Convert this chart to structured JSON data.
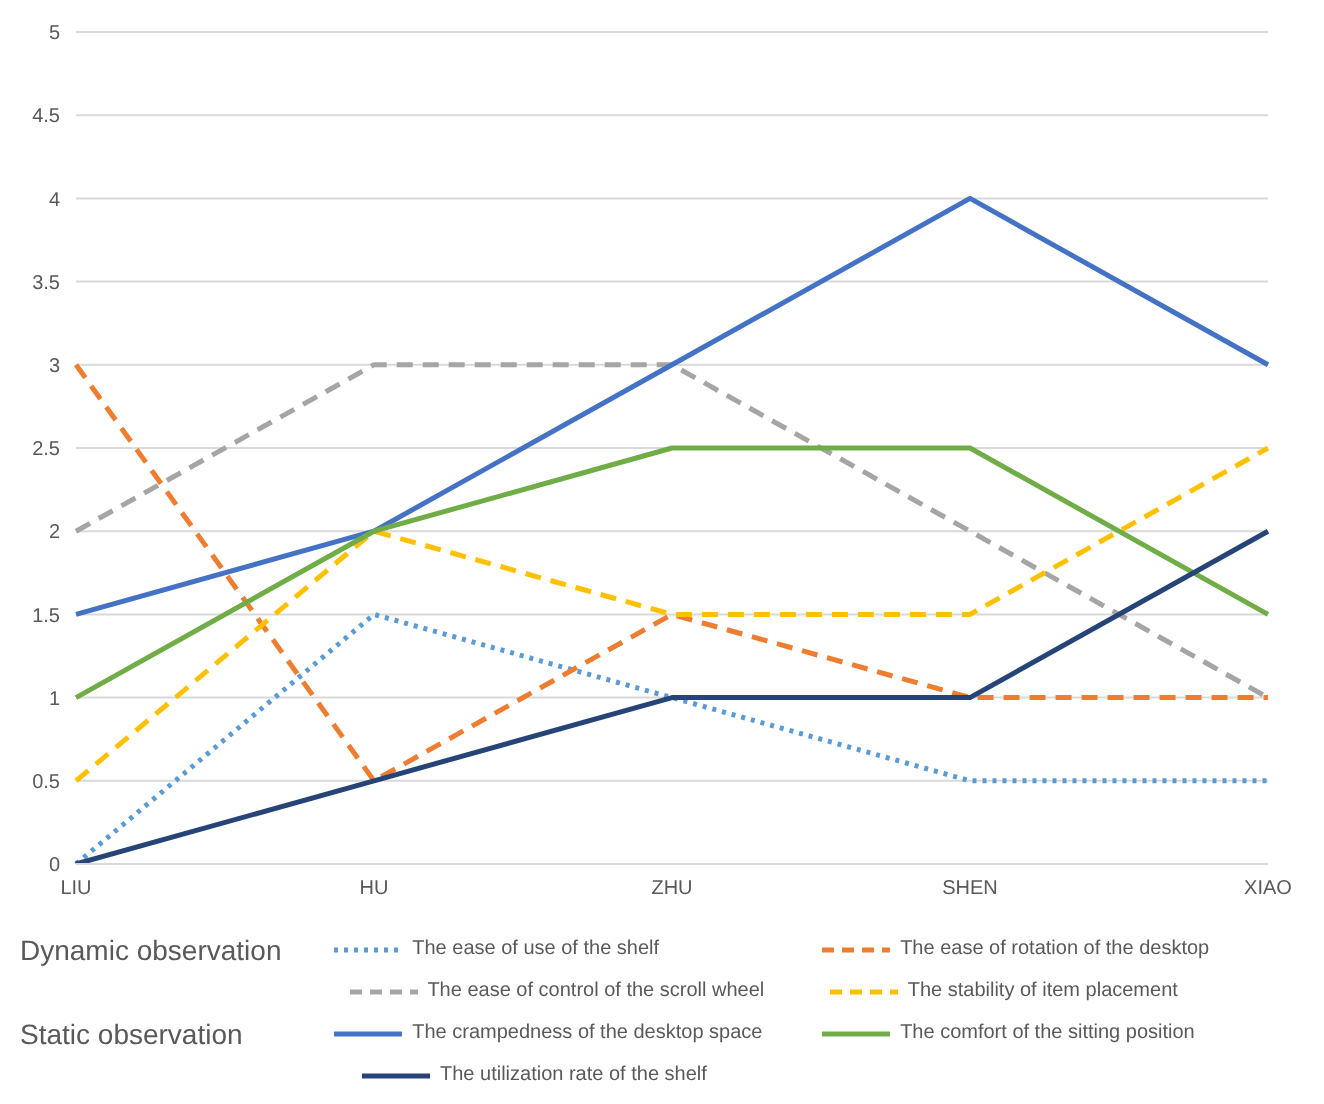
{
  "chart_data": {
    "type": "line",
    "categories": [
      "LIU",
      "HU",
      "ZHU",
      "SHEN",
      "XIAO"
    ],
    "series": [
      {
        "name": "The ease of use of the shelf",
        "color": "#5b9bd5",
        "line_style": "dotted",
        "values": [
          0,
          1.5,
          1,
          0.5,
          0.5
        ]
      },
      {
        "name": "The ease of rotation of the desktop",
        "color": "#ed7d31",
        "line_style": "dashed",
        "values": [
          3,
          0.5,
          1.5,
          1,
          1
        ]
      },
      {
        "name": "The ease of control of the scroll wheel",
        "color": "#a5a5a5",
        "line_style": "dashed",
        "values": [
          2,
          3,
          3,
          2,
          1
        ]
      },
      {
        "name": "The stability of item placement",
        "color": "#ffc000",
        "line_style": "dashed",
        "values": [
          0.5,
          2,
          1.5,
          1.5,
          2.5
        ]
      },
      {
        "name": "The crampedness of the desktop space",
        "color": "#4472c4",
        "line_style": "solid",
        "values": [
          1.5,
          2,
          3,
          4,
          3
        ]
      },
      {
        "name": "The comfort of the sitting position",
        "color": "#70ad47",
        "line_style": "solid",
        "values": [
          1,
          2,
          2.5,
          2.5,
          1.5
        ]
      },
      {
        "name": "The utilization rate of the shelf",
        "color": "#264478",
        "line_style": "solid",
        "values": [
          0,
          0.5,
          1,
          1,
          2
        ]
      }
    ],
    "ylim": [
      0,
      5
    ],
    "yticks": [
      0,
      0.5,
      1,
      1.5,
      2,
      2.5,
      3,
      3.5,
      4,
      4.5,
      5
    ],
    "grid": "y",
    "legend": "bottom",
    "marker": "none",
    "annotations": [
      "Dynamic observation",
      "Static observation"
    ]
  }
}
